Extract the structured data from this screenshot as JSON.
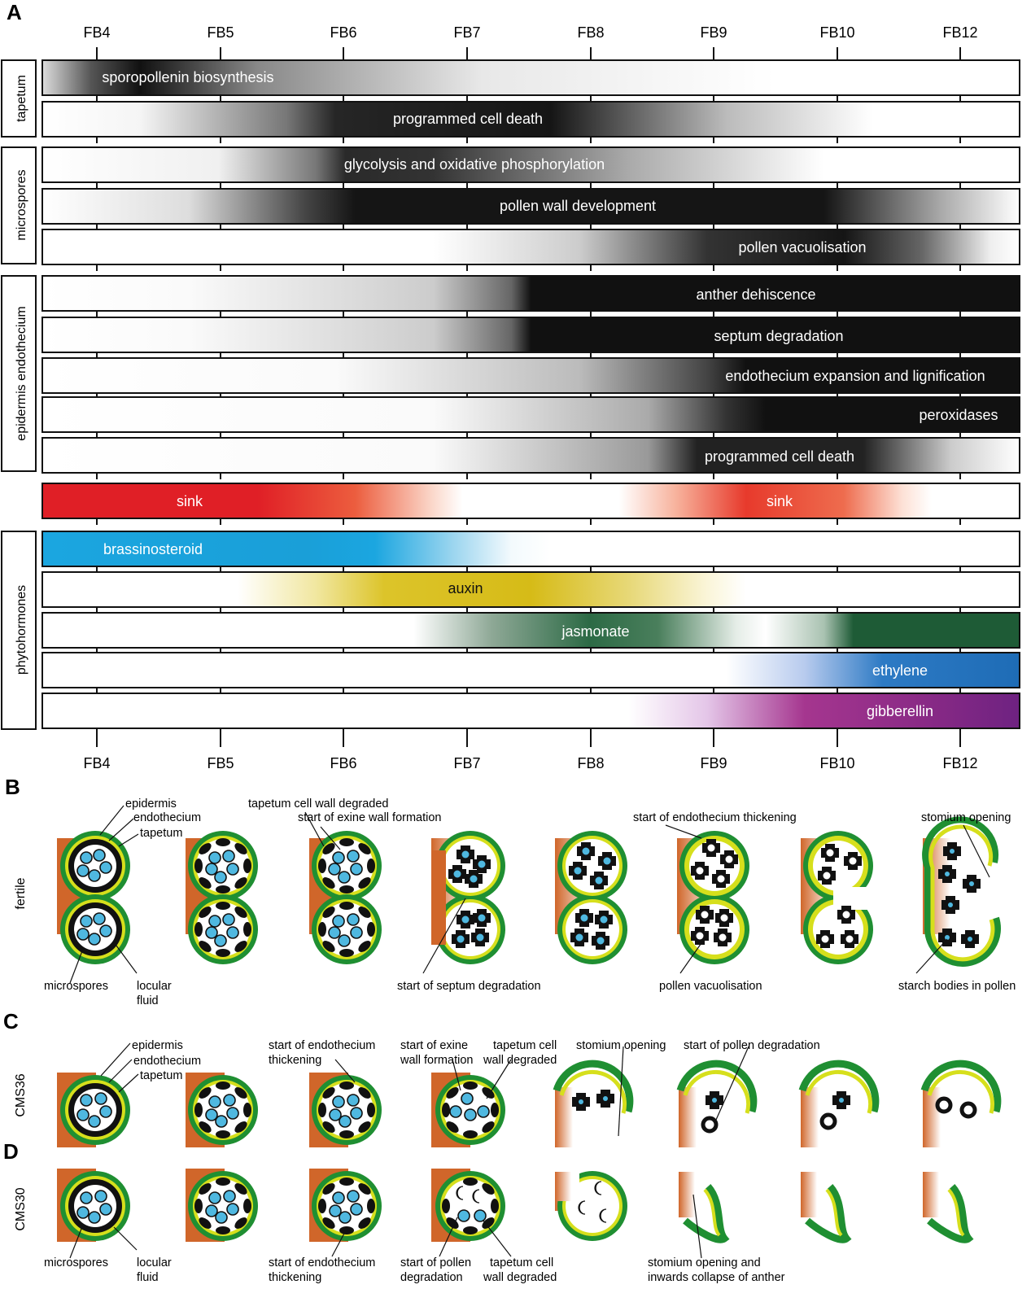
{
  "panels": {
    "a": "A",
    "b": "B",
    "c": "C",
    "d": "D"
  },
  "stages": [
    "FB4",
    "FB5",
    "FB6",
    "FB7",
    "FB8",
    "FB9",
    "FB10",
    "FB12"
  ],
  "groups": {
    "tapetum": "tapetum",
    "microspores": "microspores",
    "epidermis_endothecium": "epidermis endothecium",
    "phytohormones": "phytohormones"
  },
  "bars": {
    "sporopollenin": "sporopollenin biosynthesis",
    "tapetum_pcd": "programmed cell death",
    "glycolysis": "glycolysis and oxidative phosphorylation",
    "pollen_wall": "pollen wall development",
    "pollen_vacuolisation": "pollen vacuolisation",
    "anther_dehiscence": "anther dehiscence",
    "septum_degradation": "septum degradation",
    "endothecium_expansion": "endothecium expansion and lignification",
    "peroxidases": "peroxidases",
    "epi_pcd": "programmed cell death",
    "sink_left": "sink",
    "sink_right": "sink",
    "brassinosteroid": "brassinosteroid",
    "auxin": "auxin",
    "jasmonate": "jasmonate",
    "ethylene": "ethylene",
    "gibberellin": "gibberellin"
  },
  "row_labels": {
    "fertile": "fertile",
    "cms36": "CMS36",
    "cms30": "CMS30"
  },
  "annotations": {
    "b_epidermis": "epidermis",
    "b_endothecium": "endothecium",
    "b_tapetum": "tapetum",
    "b_tapetum_wall": "tapetum cell wall degraded",
    "b_exine": "start of exine wall formation",
    "b_endo_thick": "start of endothecium thickening",
    "b_stomium": "stomium opening",
    "b_microspores": "microspores",
    "b_locular1": "locular",
    "b_locular2": "fluid",
    "b_septum": "start of septum degradation",
    "b_vacuol": "pollen vacuolisation",
    "b_starch": "starch bodies in pollen",
    "c_epidermis": "epidermis",
    "c_endothecium": "endothecium",
    "c_tapetum": "tapetum",
    "c_endo1": "start of endothecium",
    "c_endo2": "thickening",
    "c_exine1": "start of exine",
    "c_exine2": "wall formation",
    "c_tapwall1": "tapetum cell",
    "c_tapwall2": "wall degraded",
    "c_stomium": "stomium opening",
    "c_pollen_deg": "start of pollen degradation",
    "d_microspores": "microspores",
    "d_locular1": "locular",
    "d_locular2": "fluid",
    "d_endo1": "start of endothecium",
    "d_endo2": "thickening",
    "d_pollen1": "start of pollen",
    "d_pollen2": "degradation",
    "d_tapwall1": "tapetum cell",
    "d_tapwall2": "wall degraded",
    "d_stomium1": "stomium opening and",
    "d_stomium2": "inwards collapse of anther"
  },
  "colors": {
    "epidermis": "#1f8f32",
    "endothecium": "#d6df1c",
    "connective": "#d0662a",
    "pollen": "#4fb8e0",
    "sink": "#e01f26",
    "brassinosteroid": "#1ba6e0",
    "auxin": "#d9c21e",
    "jasmonate": "#1e5b36",
    "ethylene": "#1e6cb6",
    "gibberellin": "#6e2281"
  }
}
